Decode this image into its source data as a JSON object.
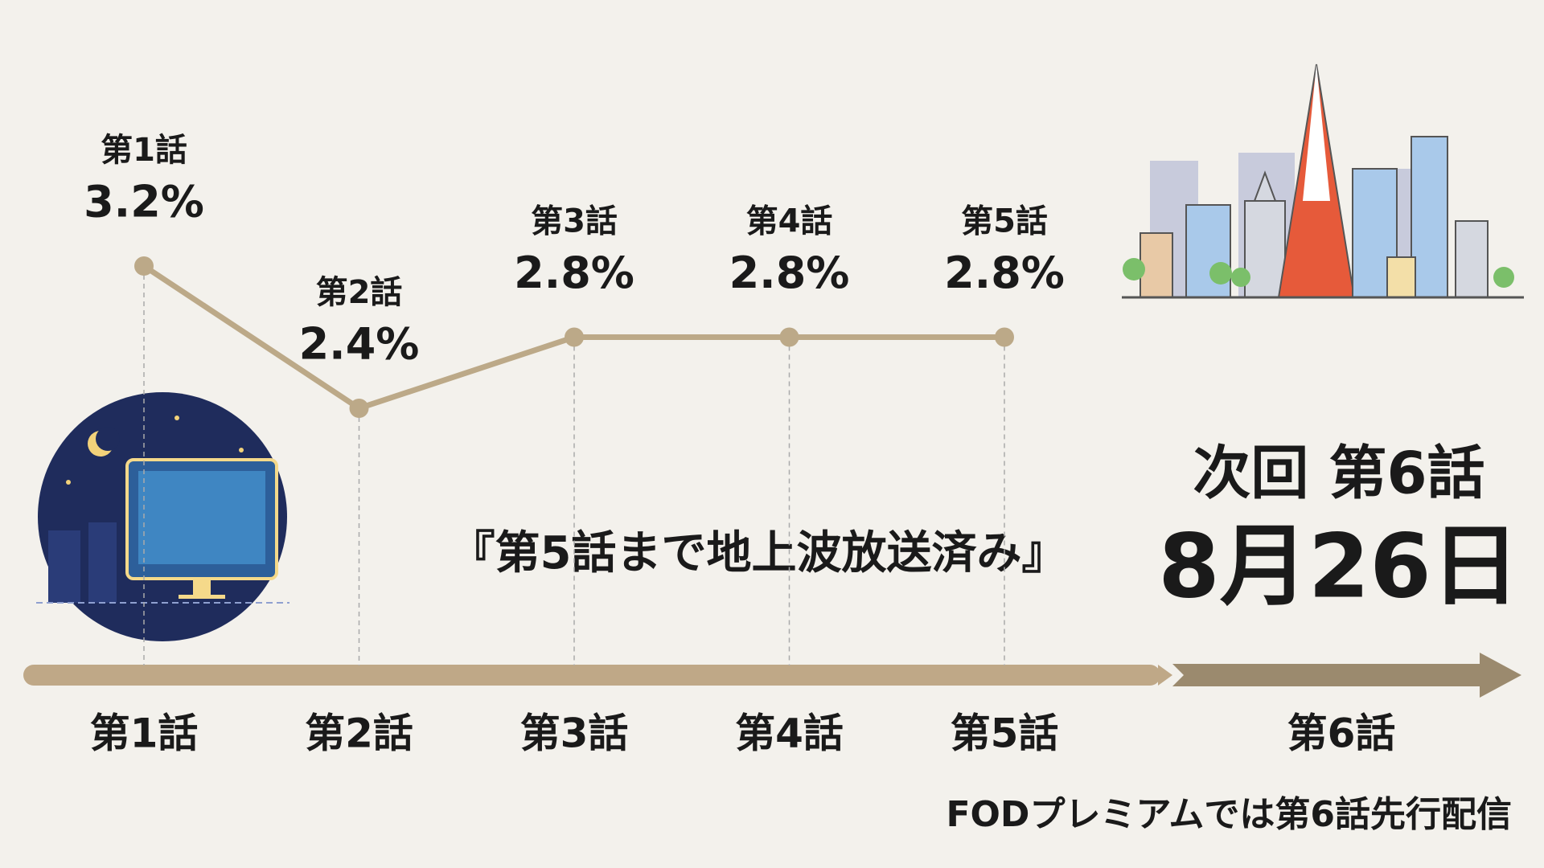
{
  "chart_data": {
    "type": "line",
    "categories": [
      "第1話",
      "第2話",
      "第3話",
      "第4話",
      "第5話"
    ],
    "series": [
      {
        "color": "#bca988",
        "values": [
          3.2,
          2.4,
          2.8,
          2.8,
          2.8
        ],
        "value_labels": [
          "3.2%",
          "2.4%",
          "2.8%",
          "2.8%",
          "2.8%"
        ]
      }
    ],
    "timeline_labels": [
      "第1話",
      "第2話",
      "第3話",
      "第4話",
      "第5話",
      "第6話"
    ],
    "annotation": "『第5話まで地上波放送済み』",
    "next_episode": "次回 第6話",
    "next_date": "8月26日",
    "footer": "FODプレミアムでは第6話先行配信"
  }
}
